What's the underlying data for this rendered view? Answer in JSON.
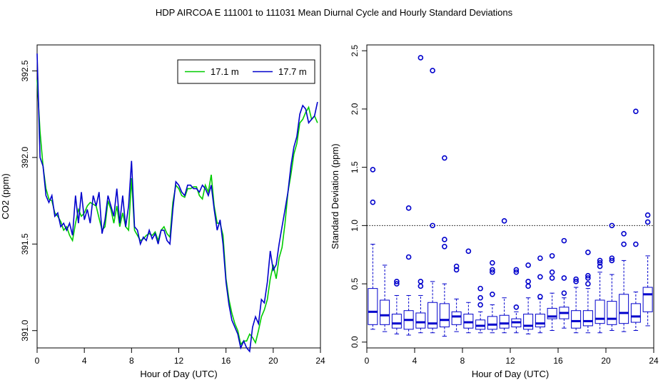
{
  "title": "HDP   AIRCOA E   111001 to 111031   Mean Diurnal Cycle and Hourly Standard Deviations",
  "colors": {
    "series_green": "#00cc00",
    "series_blue": "#0000cc",
    "axis": "#000000",
    "box": "#0000cc"
  },
  "chart_data": [
    {
      "type": "line",
      "title": "",
      "xlabel": "Hour of Day (UTC)",
      "ylabel": "CO2 (ppm)",
      "xlim": [
        0,
        24
      ],
      "ylim": [
        390.9,
        392.65
      ],
      "xticks": [
        0,
        4,
        8,
        12,
        16,
        20,
        24
      ],
      "yticks": [
        391.0,
        391.5,
        392.0,
        392.5
      ],
      "xtick_labels": [
        "0",
        "4",
        "8",
        "12",
        "16",
        "20",
        "24"
      ],
      "ytick_labels": [
        "391.0",
        "391.5",
        "392.0",
        "392.5"
      ],
      "legend": {
        "position": "top-right"
      },
      "series": [
        {
          "name": "17.1 m",
          "color": "#00cc00",
          "x": [
            0,
            0.25,
            0.5,
            0.75,
            1,
            1.25,
            1.5,
            1.75,
            2,
            2.25,
            2.5,
            2.75,
            3,
            3.25,
            3.5,
            3.75,
            4,
            4.25,
            4.5,
            4.75,
            5,
            5.25,
            5.5,
            5.75,
            6,
            6.25,
            6.5,
            6.75,
            7,
            7.25,
            7.5,
            7.75,
            8,
            8.25,
            8.5,
            8.75,
            9,
            9.25,
            9.5,
            9.75,
            10,
            10.25,
            10.5,
            10.75,
            11,
            11.25,
            11.5,
            11.75,
            12,
            12.25,
            12.5,
            12.75,
            13,
            13.25,
            13.5,
            13.75,
            14,
            14.25,
            14.5,
            14.75,
            15,
            15.25,
            15.5,
            15.75,
            16,
            16.25,
            16.5,
            16.75,
            17,
            17.25,
            17.5,
            17.75,
            18,
            18.25,
            18.5,
            18.75,
            19,
            19.25,
            19.5,
            19.75,
            20,
            20.25,
            20.5,
            20.75,
            21,
            21.25,
            21.5,
            21.75,
            22,
            22.25,
            22.5,
            22.75,
            23,
            23.25,
            23.5,
            23.75
          ],
          "values": [
            392.45,
            392.15,
            391.95,
            391.82,
            391.76,
            391.75,
            391.68,
            391.66,
            391.63,
            391.58,
            391.6,
            391.55,
            391.52,
            391.62,
            391.7,
            391.66,
            391.68,
            391.72,
            391.74,
            391.73,
            391.72,
            391.65,
            391.58,
            391.6,
            391.75,
            391.7,
            391.62,
            391.72,
            391.6,
            391.68,
            391.6,
            391.58,
            391.88,
            391.58,
            391.55,
            391.52,
            391.53,
            391.55,
            391.56,
            391.55,
            391.57,
            391.52,
            391.58,
            391.6,
            391.56,
            391.54,
            391.74,
            391.84,
            391.82,
            391.78,
            391.77,
            391.82,
            391.82,
            391.83,
            391.83,
            391.78,
            391.76,
            391.84,
            391.8,
            391.9,
            391.72,
            391.62,
            391.62,
            391.55,
            391.3,
            391.18,
            391.1,
            391.04,
            391.0,
            390.92,
            390.94,
            390.94,
            390.98,
            390.96,
            390.93,
            391.0,
            391.08,
            391.12,
            391.18,
            391.3,
            391.38,
            391.3,
            391.42,
            391.48,
            391.62,
            391.8,
            391.9,
            392.02,
            392.08,
            392.2,
            392.22,
            392.26,
            392.29,
            392.22,
            392.24,
            392.2
          ]
        },
        {
          "name": "17.7 m",
          "color": "#0000cc",
          "x": [
            0,
            0.25,
            0.5,
            0.75,
            1,
            1.25,
            1.5,
            1.75,
            2,
            2.25,
            2.5,
            2.75,
            3,
            3.25,
            3.5,
            3.75,
            4,
            4.25,
            4.5,
            4.75,
            5,
            5.25,
            5.5,
            5.75,
            6,
            6.25,
            6.5,
            6.75,
            7,
            7.25,
            7.5,
            7.75,
            8,
            8.25,
            8.5,
            8.75,
            9,
            9.25,
            9.5,
            9.75,
            10,
            10.25,
            10.5,
            10.75,
            11,
            11.25,
            11.5,
            11.75,
            12,
            12.25,
            12.5,
            12.75,
            13,
            13.25,
            13.5,
            13.75,
            14,
            14.25,
            14.5,
            14.75,
            15,
            15.25,
            15.5,
            15.75,
            16,
            16.25,
            16.5,
            16.75,
            17,
            17.25,
            17.5,
            17.75,
            18,
            18.25,
            18.5,
            18.75,
            19,
            19.25,
            19.5,
            19.75,
            20,
            20.25,
            20.5,
            20.75,
            21,
            21.25,
            21.5,
            21.75,
            22,
            22.25,
            22.5,
            22.75,
            23,
            23.25,
            23.5,
            23.75
          ],
          "values": [
            392.6,
            392.0,
            391.95,
            391.78,
            391.74,
            391.78,
            391.66,
            391.68,
            391.6,
            391.62,
            391.58,
            391.62,
            391.55,
            391.78,
            391.62,
            391.8,
            391.64,
            391.7,
            391.62,
            391.78,
            391.72,
            391.8,
            391.56,
            391.64,
            391.78,
            391.72,
            391.66,
            391.82,
            391.62,
            391.78,
            391.6,
            391.72,
            391.98,
            391.6,
            391.58,
            391.5,
            391.54,
            391.52,
            391.58,
            391.53,
            391.56,
            391.5,
            391.58,
            391.58,
            391.52,
            391.5,
            391.7,
            391.86,
            391.84,
            391.8,
            391.78,
            391.84,
            391.84,
            391.82,
            391.82,
            391.8,
            391.84,
            391.82,
            391.78,
            391.84,
            391.7,
            391.58,
            391.64,
            391.5,
            391.28,
            391.15,
            391.06,
            391.02,
            390.98,
            390.9,
            390.94,
            390.9,
            390.88,
            391.02,
            391.08,
            391.04,
            391.18,
            391.16,
            391.28,
            391.46,
            391.35,
            391.38,
            391.5,
            391.6,
            391.7,
            391.8,
            391.95,
            392.06,
            392.12,
            392.25,
            392.3,
            392.28,
            392.2,
            392.22,
            392.24,
            392.32
          ]
        }
      ]
    },
    {
      "type": "box",
      "title": "",
      "xlabel": "Hour of Day (UTC)",
      "ylabel": "Standard Deviation (ppm)",
      "xlim": [
        0,
        24
      ],
      "ylim": [
        -0.05,
        2.55
      ],
      "xticks": [
        0,
        4,
        8,
        12,
        16,
        20,
        24
      ],
      "yticks": [
        0.0,
        0.5,
        1.0,
        1.5,
        2.0,
        2.5
      ],
      "xtick_labels": [
        "0",
        "4",
        "8",
        "12",
        "16",
        "20",
        "24"
      ],
      "ytick_labels": [
        "0.0",
        "0.5",
        "1.0",
        "1.5",
        "2.0",
        "2.5"
      ],
      "reference_line": 1.0,
      "boxes": [
        {
          "x": 0.5,
          "whisker_low": 0.11,
          "q1": 0.15,
          "median": 0.26,
          "q3": 0.46,
          "whisker_high": 0.84,
          "outliers": [
            1.2,
            1.48
          ]
        },
        {
          "x": 1.5,
          "whisker_low": 0.09,
          "q1": 0.15,
          "median": 0.23,
          "q3": 0.36,
          "whisker_high": 0.66,
          "outliers": []
        },
        {
          "x": 2.5,
          "whisker_low": 0.07,
          "q1": 0.12,
          "median": 0.16,
          "q3": 0.24,
          "whisker_high": 0.4,
          "outliers": [
            0.5,
            0.52
          ]
        },
        {
          "x": 3.5,
          "whisker_low": 0.06,
          "q1": 0.11,
          "median": 0.19,
          "q3": 0.27,
          "whisker_high": 0.4,
          "outliers": [
            0.73,
            1.15
          ]
        },
        {
          "x": 4.5,
          "whisker_low": 0.08,
          "q1": 0.12,
          "median": 0.17,
          "q3": 0.25,
          "whisker_high": 0.4,
          "outliers": [
            0.48,
            0.52,
            2.44
          ]
        },
        {
          "x": 5.5,
          "whisker_low": 0.08,
          "q1": 0.12,
          "median": 0.16,
          "q3": 0.34,
          "whisker_high": 0.52,
          "outliers": [
            1.0,
            2.33
          ]
        },
        {
          "x": 6.5,
          "whisker_low": 0.05,
          "q1": 0.13,
          "median": 0.19,
          "q3": 0.33,
          "whisker_high": 0.5,
          "outliers": [
            0.82,
            0.88,
            1.58
          ]
        },
        {
          "x": 7.5,
          "whisker_low": 0.09,
          "q1": 0.15,
          "median": 0.22,
          "q3": 0.26,
          "whisker_high": 0.37,
          "outliers": [
            0.62,
            0.65
          ]
        },
        {
          "x": 8.5,
          "whisker_low": 0.08,
          "q1": 0.12,
          "median": 0.17,
          "q3": 0.24,
          "whisker_high": 0.34,
          "outliers": [
            0.78
          ]
        },
        {
          "x": 9.5,
          "whisker_low": 0.08,
          "q1": 0.11,
          "median": 0.14,
          "q3": 0.19,
          "whisker_high": 0.26,
          "outliers": [
            0.32,
            0.38,
            0.46
          ]
        },
        {
          "x": 10.5,
          "whisker_low": 0.08,
          "q1": 0.11,
          "median": 0.15,
          "q3": 0.22,
          "whisker_high": 0.32,
          "outliers": [
            0.41,
            0.6,
            0.62,
            0.68
          ]
        },
        {
          "x": 11.5,
          "whisker_low": 0.08,
          "q1": 0.12,
          "median": 0.16,
          "q3": 0.23,
          "whisker_high": 0.38,
          "outliers": [
            1.04
          ]
        },
        {
          "x": 12.5,
          "whisker_low": 0.08,
          "q1": 0.13,
          "median": 0.17,
          "q3": 0.2,
          "whisker_high": 0.26,
          "outliers": [
            0.3,
            0.6,
            0.62
          ]
        },
        {
          "x": 13.5,
          "whisker_low": 0.07,
          "q1": 0.11,
          "median": 0.14,
          "q3": 0.24,
          "whisker_high": 0.38,
          "outliers": [
            0.48,
            0.52,
            0.66
          ]
        },
        {
          "x": 14.5,
          "whisker_low": 0.08,
          "q1": 0.13,
          "median": 0.16,
          "q3": 0.24,
          "whisker_high": 0.37,
          "outliers": [
            0.39,
            0.56,
            0.72
          ]
        },
        {
          "x": 15.5,
          "whisker_low": 0.1,
          "q1": 0.2,
          "median": 0.22,
          "q3": 0.29,
          "whisker_high": 0.42,
          "outliers": [
            0.55,
            0.6,
            0.74
          ]
        },
        {
          "x": 16.5,
          "whisker_low": 0.12,
          "q1": 0.2,
          "median": 0.25,
          "q3": 0.3,
          "whisker_high": 0.38,
          "outliers": [
            0.42,
            0.55,
            0.87
          ]
        },
        {
          "x": 17.5,
          "whisker_low": 0.08,
          "q1": 0.12,
          "median": 0.18,
          "q3": 0.27,
          "whisker_high": 0.47,
          "outliers": [
            0.52,
            0.54
          ]
        },
        {
          "x": 18.5,
          "whisker_low": 0.08,
          "q1": 0.14,
          "median": 0.18,
          "q3": 0.27,
          "whisker_high": 0.46,
          "outliers": [
            0.5,
            0.55,
            0.57,
            0.77
          ]
        },
        {
          "x": 19.5,
          "whisker_low": 0.08,
          "q1": 0.16,
          "median": 0.2,
          "q3": 0.36,
          "whisker_high": 0.6,
          "outliers": [
            0.65,
            0.68,
            0.7
          ]
        },
        {
          "x": 20.5,
          "whisker_low": 0.1,
          "q1": 0.15,
          "median": 0.2,
          "q3": 0.35,
          "whisker_high": 0.58,
          "outliers": [
            0.7,
            0.72,
            1.0
          ]
        },
        {
          "x": 21.5,
          "whisker_low": 0.09,
          "q1": 0.16,
          "median": 0.25,
          "q3": 0.41,
          "whisker_high": 0.7,
          "outliers": [
            0.84,
            0.93
          ]
        },
        {
          "x": 22.5,
          "whisker_low": 0.1,
          "q1": 0.17,
          "median": 0.22,
          "q3": 0.33,
          "whisker_high": 0.43,
          "outliers": [
            0.84,
            1.98
          ]
        },
        {
          "x": 23.5,
          "whisker_low": 0.14,
          "q1": 0.26,
          "median": 0.41,
          "q3": 0.47,
          "whisker_high": 0.74,
          "outliers": [
            1.03,
            1.09
          ]
        }
      ]
    }
  ]
}
